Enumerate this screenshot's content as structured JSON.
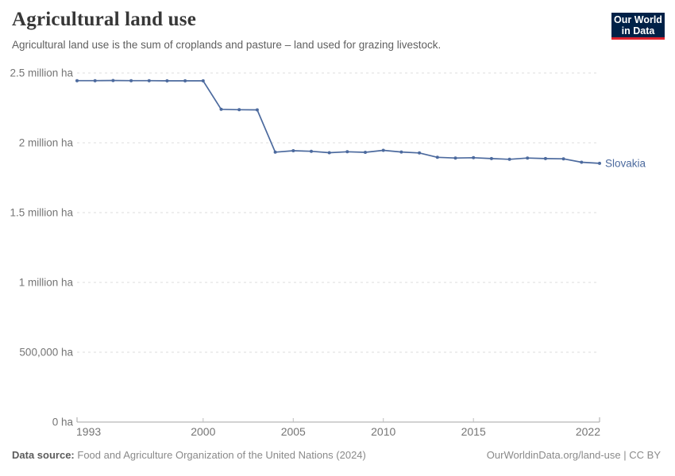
{
  "header": {
    "title": "Agricultural land use",
    "subtitle": "Agricultural land use is the sum of croplands and pasture – land used for grazing livestock.",
    "logo": {
      "line1": "Our World",
      "line2": "in Data",
      "bg_color": "#002147",
      "accent_color": "#e0232e"
    }
  },
  "chart_data": {
    "type": "line",
    "title": "Agricultural land use",
    "unit": "ha",
    "grid": true,
    "xlim": [
      1993,
      2022
    ],
    "ylim": [
      0,
      2500000
    ],
    "x_ticks": [
      1993,
      2000,
      2005,
      2010,
      2015,
      2022
    ],
    "y_ticks": [
      {
        "value": 0,
        "label": "0 ha"
      },
      {
        "value": 500000,
        "label": "500,000 ha"
      },
      {
        "value": 1000000,
        "label": "1 million ha"
      },
      {
        "value": 1500000,
        "label": "1.5 million ha"
      },
      {
        "value": 2000000,
        "label": "2 million ha"
      },
      {
        "value": 2500000,
        "label": "2.5 million ha"
      }
    ],
    "series": [
      {
        "name": "Slovakia",
        "color": "#4c6a9e",
        "x": [
          1993,
          1994,
          1995,
          1996,
          1997,
          1998,
          1999,
          2000,
          2001,
          2002,
          2003,
          2004,
          2005,
          2006,
          2007,
          2008,
          2009,
          2010,
          2011,
          2012,
          2013,
          2014,
          2015,
          2016,
          2017,
          2018,
          2019,
          2020,
          2021,
          2022
        ],
        "values": [
          2445000,
          2445000,
          2446000,
          2445000,
          2445000,
          2444000,
          2444000,
          2444000,
          2240000,
          2237000,
          2236000,
          1933000,
          1943000,
          1939000,
          1929000,
          1936000,
          1932000,
          1946000,
          1934000,
          1927000,
          1896000,
          1891000,
          1893000,
          1887000,
          1882000,
          1891000,
          1887000,
          1885000,
          1861000,
          1853000
        ]
      }
    ],
    "legend_position": "end-of-line"
  },
  "footer": {
    "source_label": "Data source:",
    "source_text": "Food and Agriculture Organization of the United Nations (2024)",
    "url": "OurWorldinData.org/land-use",
    "separator": "|",
    "license": "CC BY"
  }
}
